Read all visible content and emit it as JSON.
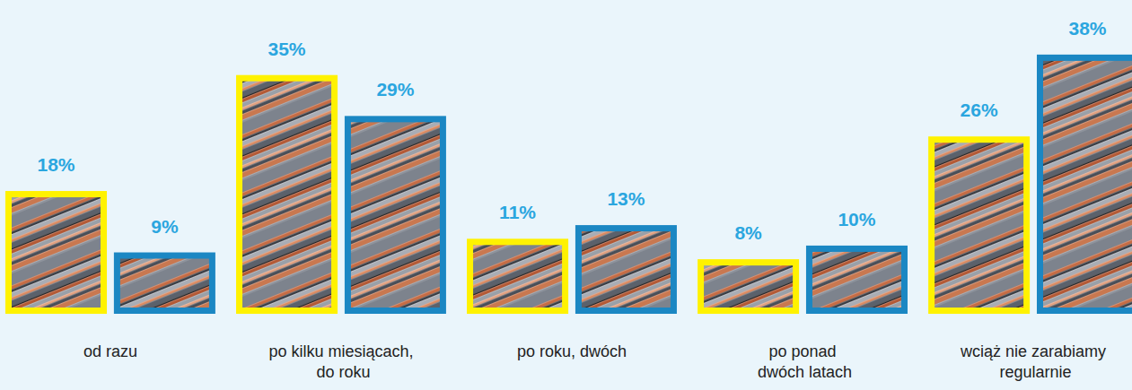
{
  "chart_data": {
    "type": "bar",
    "categories": [
      "od razu",
      "po kilku miesiącach, do roku",
      "po roku, dwóch",
      "po ponad dwóch latach",
      "wciąż nie zarabiamy regularnie"
    ],
    "series": [
      {
        "color": "#fff200",
        "values": [
          18,
          35,
          11,
          8,
          26
        ],
        "value_labels": [
          "18%",
          "35%",
          "11%",
          "8%",
          "26%"
        ]
      },
      {
        "color": "#1b87c3",
        "values": [
          9,
          29,
          13,
          10,
          38
        ],
        "value_labels": [
          "9%",
          "29%",
          "13%",
          "10%",
          "38%"
        ]
      }
    ],
    "ylim": [
      0,
      46
    ],
    "data_labels": true,
    "tick_labels": "x"
  }
}
